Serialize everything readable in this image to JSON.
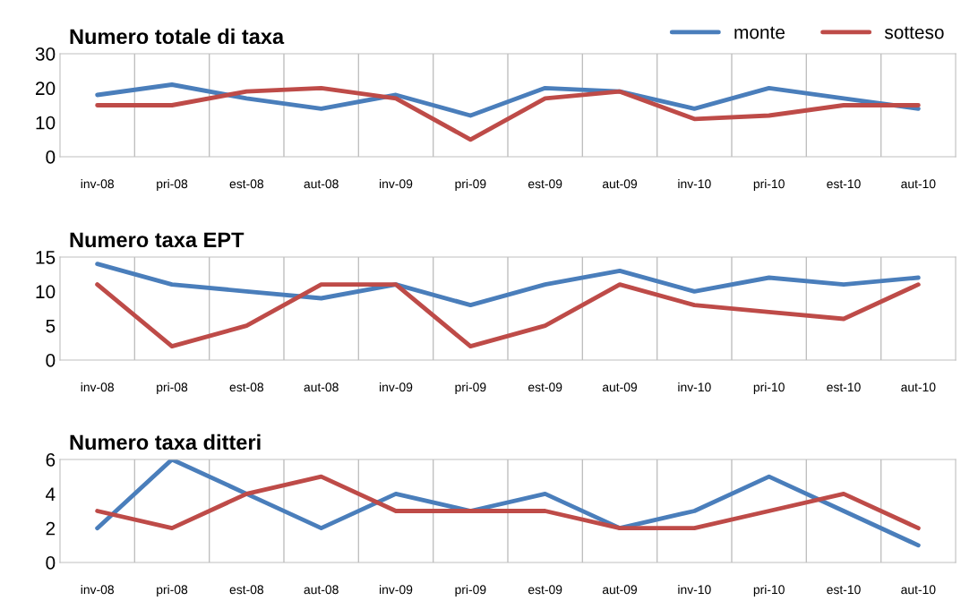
{
  "chart_data": [
    {
      "type": "line",
      "title": "Numero totale di taxa",
      "categories": [
        "inv-08",
        "pri-08",
        "est-08",
        "aut-08",
        "inv-09",
        "pri-09",
        "est-09",
        "aut-09",
        "inv-10",
        "pri-10",
        "est-10",
        "aut-10"
      ],
      "ylim": [
        0,
        30
      ],
      "yticks": [
        0,
        10,
        20,
        30
      ],
      "grid": "x",
      "legend": "top right",
      "series": [
        {
          "name": "monte",
          "color": "#4a7ebb",
          "values": [
            18,
            21,
            17,
            14,
            18,
            12,
            20,
            19,
            14,
            20,
            17,
            14
          ]
        },
        {
          "name": "sotteso",
          "color": "#be4b48",
          "values": [
            15,
            15,
            19,
            20,
            17,
            5,
            17,
            19,
            11,
            12,
            15,
            15
          ]
        }
      ]
    },
    {
      "type": "line",
      "title": "Numero taxa EPT",
      "categories": [
        "inv-08",
        "pri-08",
        "est-08",
        "aut-08",
        "inv-09",
        "pri-09",
        "est-09",
        "aut-09",
        "inv-10",
        "pri-10",
        "est-10",
        "aut-10"
      ],
      "ylim": [
        0,
        15
      ],
      "yticks": [
        0,
        5,
        10,
        15
      ],
      "grid": "x",
      "series": [
        {
          "color": "#4a7ebb",
          "values": [
            14,
            11,
            10,
            9,
            11,
            8,
            11,
            13,
            10,
            12,
            11,
            12
          ]
        },
        {
          "color": "#be4b48",
          "values": [
            11,
            2,
            5,
            11,
            11,
            2,
            5,
            11,
            8,
            7,
            6,
            11
          ]
        }
      ]
    },
    {
      "type": "line",
      "title": "Numero taxa ditteri",
      "categories": [
        "inv-08",
        "pri-08",
        "est-08",
        "aut-08",
        "inv-09",
        "pri-09",
        "est-09",
        "aut-09",
        "inv-10",
        "pri-10",
        "est-10",
        "aut-10"
      ],
      "ylim": [
        0,
        6
      ],
      "yticks": [
        0,
        2,
        4,
        6
      ],
      "grid": "x",
      "series": [
        {
          "color": "#4a7ebb",
          "values": [
            2,
            6,
            4,
            2,
            4,
            3,
            4,
            2,
            3,
            5,
            3,
            1
          ]
        },
        {
          "color": "#be4b48",
          "values": [
            3,
            2,
            4,
            5,
            3,
            3,
            3,
            2,
            2,
            3,
            4,
            2
          ]
        }
      ]
    }
  ]
}
